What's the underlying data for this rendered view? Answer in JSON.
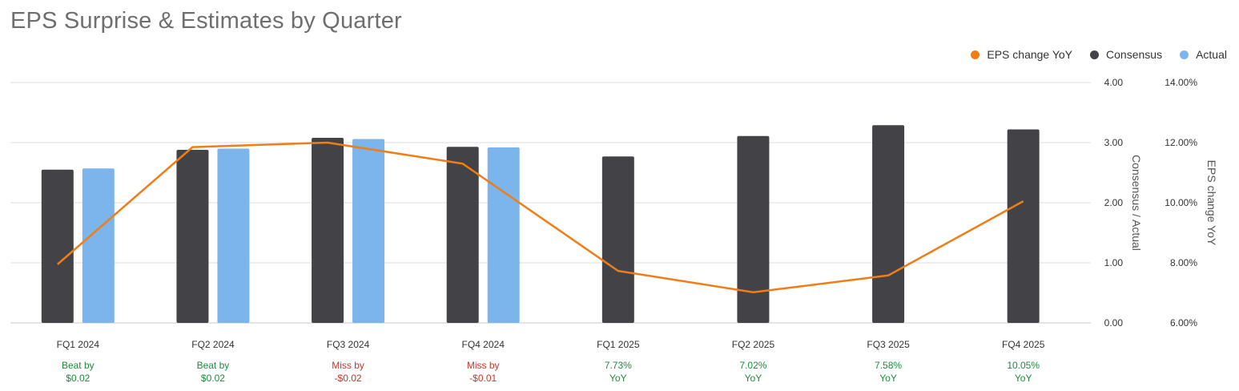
{
  "chart_data": {
    "type": "bar",
    "title": "EPS Surprise & Estimates by Quarter",
    "categories": [
      "FQ1 2024",
      "FQ2 2024",
      "FQ3 2024",
      "FQ4 2024",
      "FQ1 2025",
      "FQ2 2025",
      "FQ3 2025",
      "FQ4 2025"
    ],
    "series": [
      {
        "name": "Consensus",
        "type": "bar",
        "axis": "left",
        "color": "#434347",
        "values": [
          2.55,
          2.88,
          3.08,
          2.93,
          2.77,
          3.11,
          3.29,
          3.22
        ]
      },
      {
        "name": "Actual",
        "type": "bar",
        "axis": "left",
        "color": "#7cb4ec",
        "values": [
          2.57,
          2.9,
          3.06,
          2.92,
          null,
          null,
          null,
          null
        ]
      },
      {
        "name": "EPS change YoY",
        "type": "line",
        "axis": "right",
        "color": "#f07d18",
        "values": [
          7.95,
          11.85,
          12.0,
          11.3,
          7.73,
          7.02,
          7.58,
          10.05
        ]
      }
    ],
    "y_left": {
      "label": "Consensus / Actual",
      "range": [
        0,
        4
      ],
      "ticks": [
        "0.00",
        "1.00",
        "2.00",
        "3.00",
        "4.00"
      ]
    },
    "y_right": {
      "label": "EPS change YoY",
      "range": [
        6,
        14
      ],
      "ticks": [
        "6.00%",
        "8.00%",
        "10.00%",
        "12.00%",
        "14.00%"
      ]
    },
    "grid": true,
    "legend": "top-right",
    "annotations": [
      {
        "line1": "Beat by",
        "line2": "$0.02",
        "status": "beat"
      },
      {
        "line1": "Beat by",
        "line2": "$0.02",
        "status": "beat"
      },
      {
        "line1": "Miss by",
        "line2": "-$0.02",
        "status": "miss"
      },
      {
        "line1": "Miss by",
        "line2": "-$0.01",
        "status": "miss"
      },
      {
        "line1": "7.73%",
        "line2": "YoY",
        "status": "beat"
      },
      {
        "line1": "7.02%",
        "line2": "YoY",
        "status": "beat"
      },
      {
        "line1": "7.58%",
        "line2": "YoY",
        "status": "beat"
      },
      {
        "line1": "10.05%",
        "line2": "YoY",
        "status": "beat"
      }
    ],
    "status_colors": {
      "beat": "#1e8a3c",
      "miss": "#c0392b"
    }
  }
}
